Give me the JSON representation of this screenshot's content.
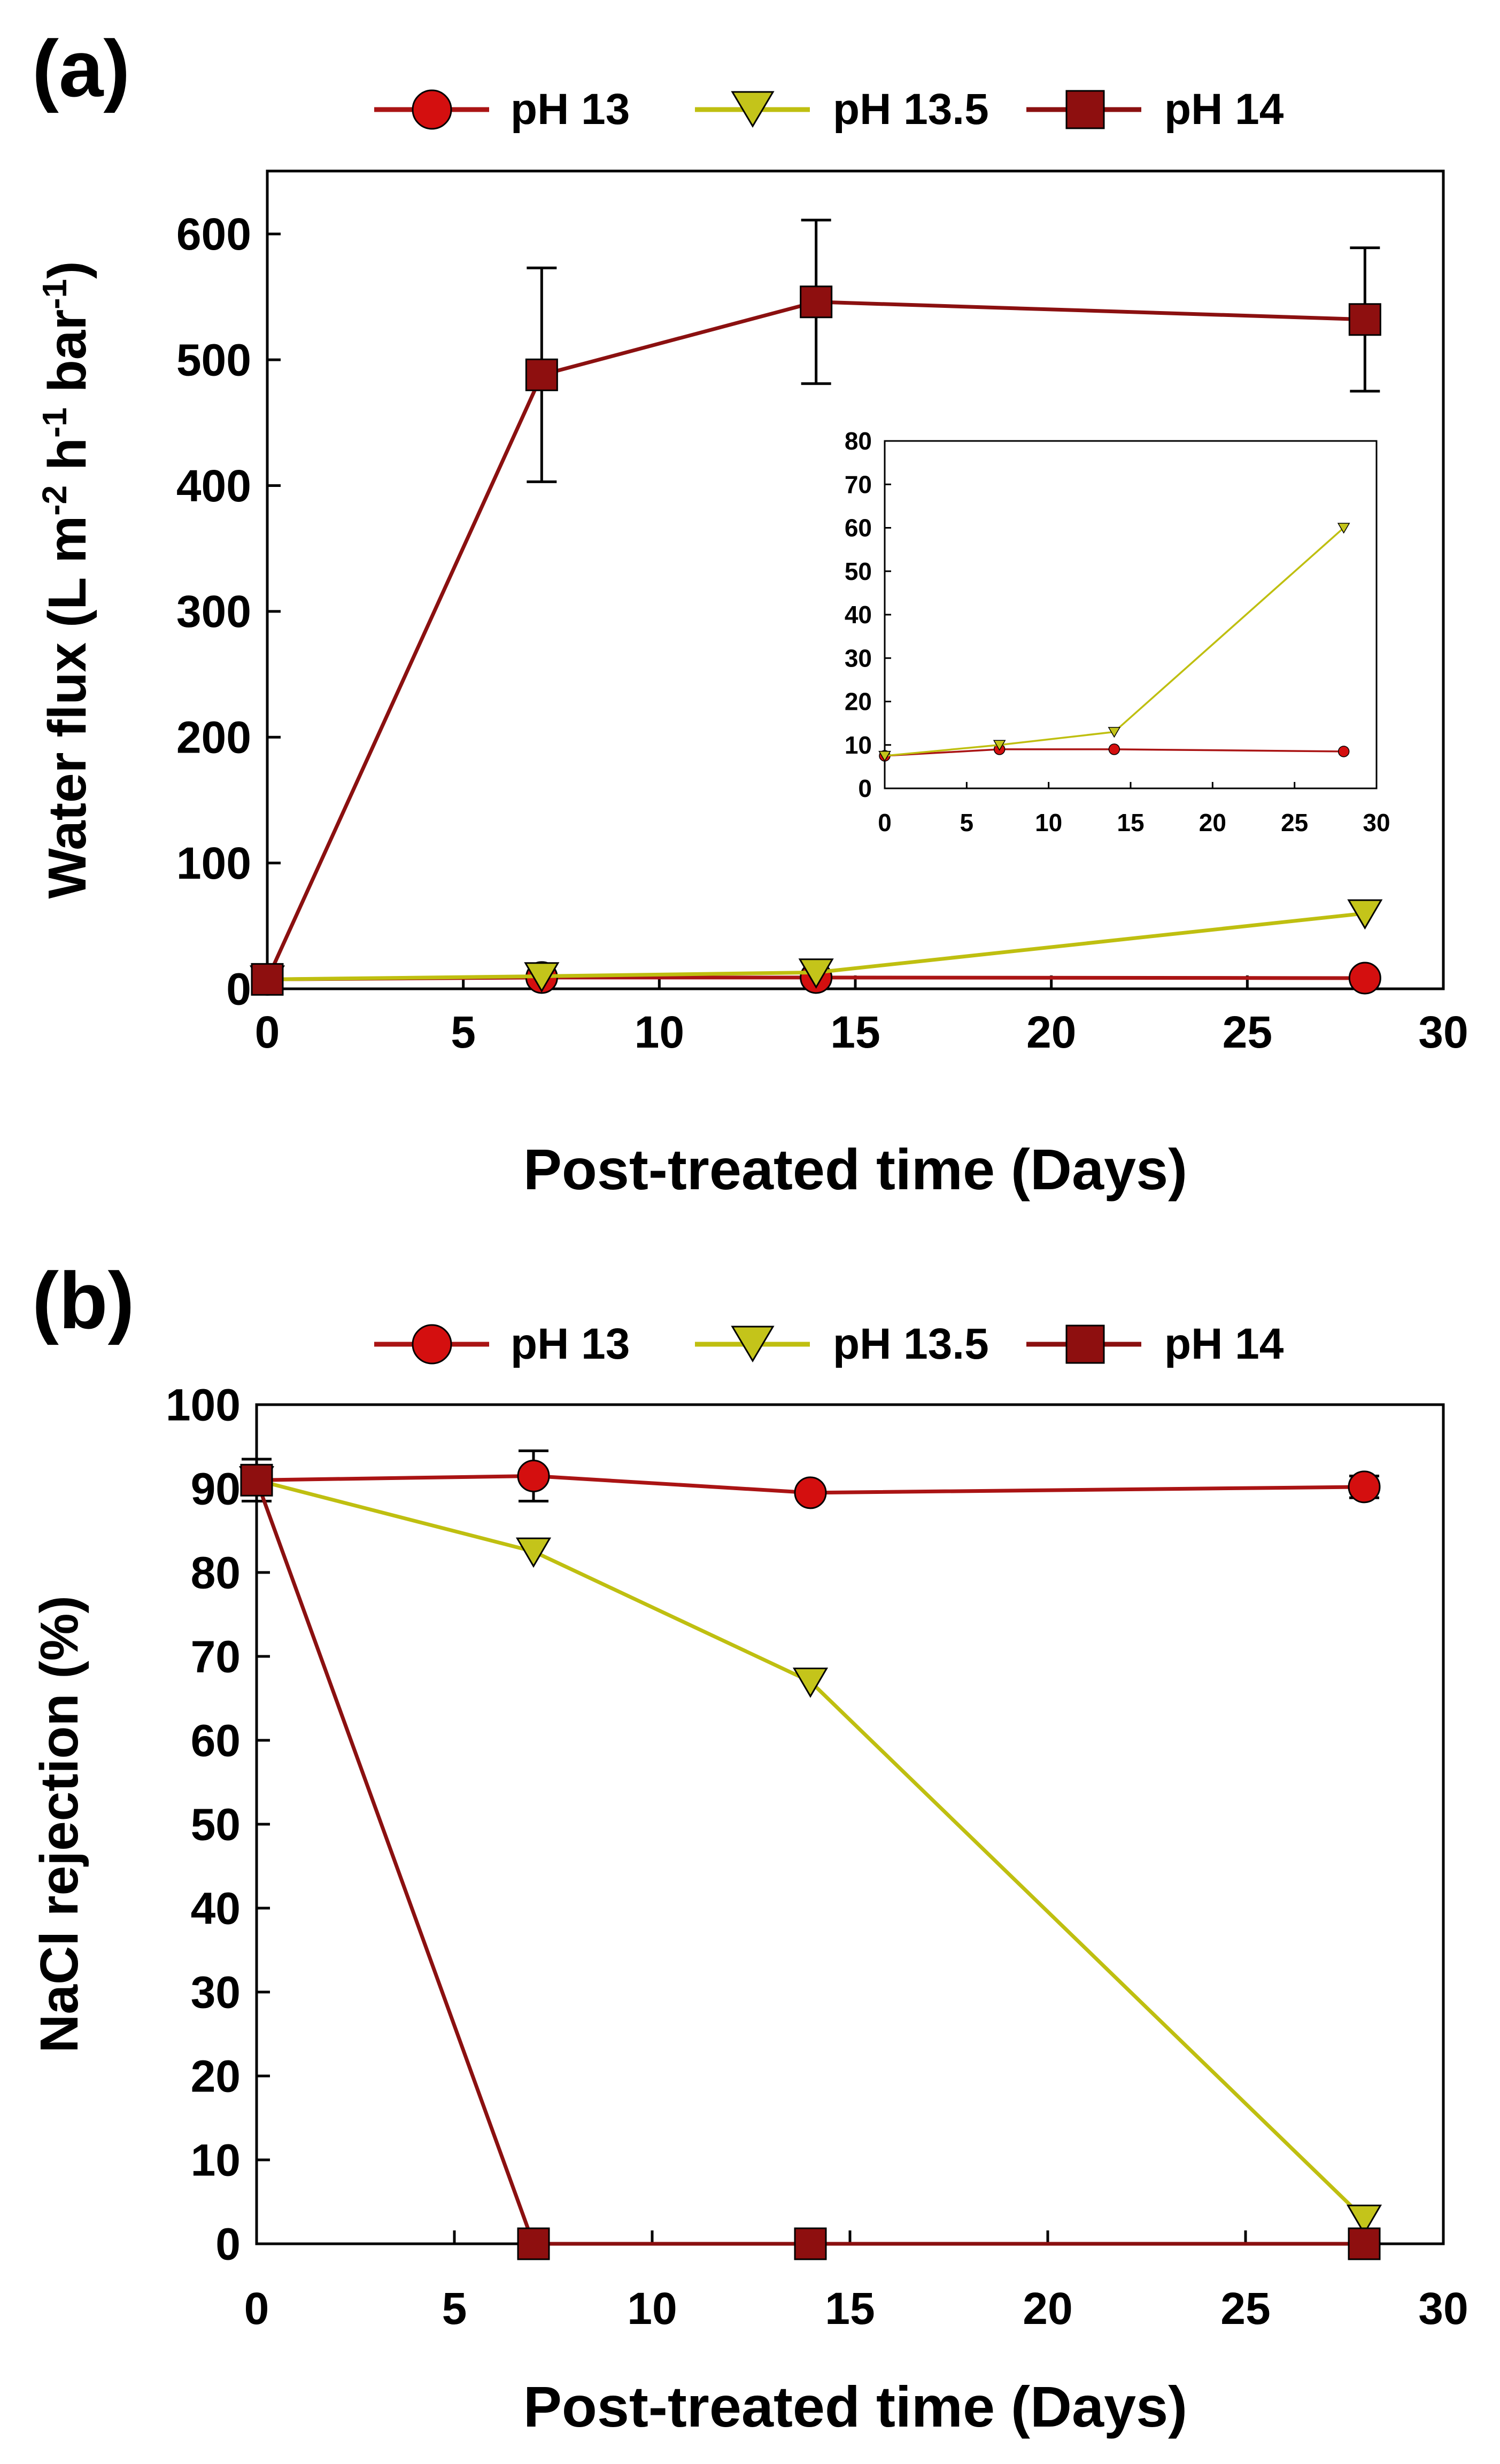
{
  "colors": {
    "ph13_line": "#aa1414",
    "ph13_fill": "#d40f0f",
    "ph135_line": "#bfbf10",
    "ph135_fill": "#c4c41a",
    "ph14_line": "#8b1010",
    "ph14_fill": "#8e0f0f",
    "axis": "#000000"
  },
  "legend": {
    "ph13": "pH 13",
    "ph135": "pH 13.5",
    "ph14": "pH 14"
  },
  "chart_data": [
    {
      "panel_label": "(a)",
      "type": "line",
      "xlabel": "Post-treated time (Days)",
      "ylabel_main": "Water flux (L m",
      "ylabel_sup1": "-2",
      "ylabel_mid1": " h",
      "ylabel_sup2": "-1",
      "ylabel_mid2": " bar",
      "ylabel_sup3": "-1",
      "ylabel_end": ")",
      "xlim": [
        0,
        30
      ],
      "ylim": [
        0,
        650
      ],
      "xticks": [
        "0",
        "5",
        "10",
        "15",
        "20",
        "25",
        "30"
      ],
      "yticks": [
        "0",
        "100",
        "200",
        "300",
        "400",
        "500",
        "600"
      ],
      "x": [
        0,
        7,
        14,
        28
      ],
      "series": [
        {
          "name": "pH 13",
          "marker": "circle",
          "values": [
            7.5,
            9,
            9,
            8.5
          ],
          "errors": [
            0,
            0,
            0,
            0
          ]
        },
        {
          "name": "pH 13.5",
          "marker": "triangle-down",
          "values": [
            7.5,
            10,
            13,
            60
          ],
          "errors": [
            0,
            0,
            0,
            0
          ]
        },
        {
          "name": "pH 14",
          "marker": "square",
          "values": [
            7.5,
            488,
            546,
            532
          ],
          "errors": [
            0,
            85,
            65,
            57
          ]
        }
      ],
      "inset": {
        "xlim": [
          0,
          30
        ],
        "ylim": [
          0,
          80
        ],
        "xticks": [
          "0",
          "5",
          "10",
          "15",
          "20",
          "25",
          "30"
        ],
        "yticks": [
          "0",
          "10",
          "20",
          "30",
          "40",
          "50",
          "60",
          "70",
          "80"
        ],
        "series": [
          {
            "name": "pH 13",
            "marker": "circle",
            "values": [
              7.5,
              9,
              9,
              8.5
            ]
          },
          {
            "name": "pH 13.5",
            "marker": "triangle-down",
            "values": [
              7.5,
              10,
              13,
              60
            ]
          }
        ]
      }
    },
    {
      "panel_label": "(b)",
      "type": "line",
      "xlabel": "Post-treated time (Days)",
      "ylabel": "NaCl rejection (%)",
      "xlim": [
        0,
        30
      ],
      "ylim": [
        0,
        100
      ],
      "xticks": [
        "0",
        "5",
        "10",
        "15",
        "20",
        "25",
        "30"
      ],
      "yticks": [
        "0",
        "10",
        "20",
        "30",
        "40",
        "50",
        "60",
        "70",
        "80",
        "90",
        "100"
      ],
      "x": [
        0,
        7,
        14,
        28
      ],
      "series": [
        {
          "name": "pH 13",
          "marker": "circle",
          "values": [
            91,
            91.5,
            89.5,
            90.2
          ],
          "errors": [
            2.5,
            3,
            0.5,
            1.3
          ]
        },
        {
          "name": "pH 13.5",
          "marker": "triangle-down",
          "values": [
            91,
            82.5,
            67,
            3
          ],
          "errors": [
            0,
            0,
            0,
            0
          ]
        },
        {
          "name": "pH 14",
          "marker": "square",
          "values": [
            91,
            0,
            0,
            0
          ],
          "errors": [
            0,
            0,
            0,
            0
          ]
        }
      ]
    }
  ]
}
